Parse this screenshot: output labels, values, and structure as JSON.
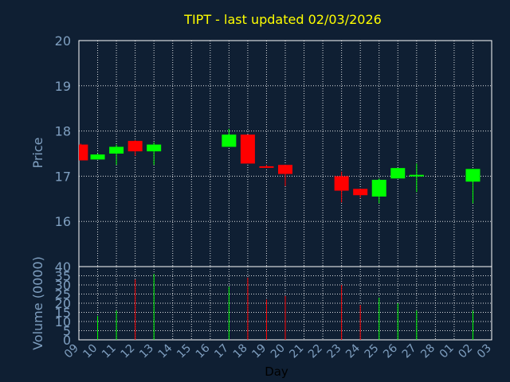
{
  "chart_data": {
    "type": "candlestick",
    "title": "TIPT - last updated 02/03/2026",
    "xlabel": "Day",
    "grid": true,
    "colors": {
      "up": "#00ff00",
      "down": "#ff0000",
      "background": "#0f1f33",
      "text": "#7f9fc0",
      "title": "#ffff00"
    },
    "x_ticks": [
      "09",
      "10",
      "11",
      "12",
      "13",
      "14",
      "15",
      "16",
      "17",
      "18",
      "19",
      "20",
      "21",
      "22",
      "23",
      "24",
      "25",
      "26",
      "27",
      "28",
      "01",
      "02",
      "03"
    ],
    "price": {
      "ylabel": "Price",
      "ylim": [
        15.0,
        20.0
      ],
      "yticks": [
        16,
        17,
        18,
        19,
        20
      ],
      "candles": [
        {
          "x": 0.1,
          "open": 17.7,
          "high": 17.72,
          "low": 17.35,
          "close": 17.35
        },
        {
          "x": 1.0,
          "open": 17.37,
          "high": 17.5,
          "low": 17.37,
          "close": 17.48
        },
        {
          "x": 2.0,
          "open": 17.5,
          "high": 17.7,
          "low": 17.25,
          "close": 17.65
        },
        {
          "x": 3.0,
          "open": 17.78,
          "high": 17.8,
          "low": 17.45,
          "close": 17.55
        },
        {
          "x": 4.0,
          "open": 17.55,
          "high": 17.75,
          "low": 17.25,
          "close": 17.7
        },
        {
          "x": 8.0,
          "open": 17.65,
          "high": 18.05,
          "low": 17.65,
          "close": 17.92
        },
        {
          "x": 9.0,
          "open": 17.92,
          "high": 17.92,
          "low": 17.28,
          "close": 17.28
        },
        {
          "x": 10.0,
          "open": 17.22,
          "high": 17.25,
          "low": 17.18,
          "close": 17.2
        },
        {
          "x": 11.0,
          "open": 17.25,
          "high": 17.25,
          "low": 16.78,
          "close": 17.05
        },
        {
          "x": 14.0,
          "open": 17.0,
          "high": 17.1,
          "low": 16.42,
          "close": 16.68
        },
        {
          "x": 15.0,
          "open": 16.72,
          "high": 16.72,
          "low": 16.52,
          "close": 16.58
        },
        {
          "x": 16.0,
          "open": 16.55,
          "high": 16.95,
          "low": 16.4,
          "close": 16.92
        },
        {
          "x": 17.0,
          "open": 16.95,
          "high": 17.18,
          "low": 16.95,
          "close": 17.18
        },
        {
          "x": 18.0,
          "open": 17.01,
          "high": 17.28,
          "low": 16.65,
          "close": 17.03
        },
        {
          "x": 21.0,
          "open": 16.88,
          "high": 17.16,
          "low": 16.4,
          "close": 17.16
        }
      ]
    },
    "volume": {
      "ylabel": "Volume (0000)",
      "ylim": [
        0,
        40
      ],
      "yticks": [
        0,
        5,
        10,
        15,
        20,
        25,
        30,
        35,
        40
      ],
      "bars": [
        {
          "x": 1.0,
          "value": 13,
          "dir": "up"
        },
        {
          "x": 2.0,
          "value": 16,
          "dir": "up"
        },
        {
          "x": 3.0,
          "value": 33,
          "dir": "down"
        },
        {
          "x": 4.0,
          "value": 36,
          "dir": "up"
        },
        {
          "x": 8.0,
          "value": 29,
          "dir": "up"
        },
        {
          "x": 9.0,
          "value": 34,
          "dir": "down"
        },
        {
          "x": 10.0,
          "value": 22,
          "dir": "down"
        },
        {
          "x": 11.0,
          "value": 24,
          "dir": "down"
        },
        {
          "x": 14.0,
          "value": 30,
          "dir": "down"
        },
        {
          "x": 15.0,
          "value": 19,
          "dir": "down"
        },
        {
          "x": 16.0,
          "value": 23,
          "dir": "up"
        },
        {
          "x": 17.0,
          "value": 20,
          "dir": "up"
        },
        {
          "x": 18.0,
          "value": 16,
          "dir": "up"
        },
        {
          "x": 21.0,
          "value": 16,
          "dir": "up"
        }
      ]
    }
  }
}
